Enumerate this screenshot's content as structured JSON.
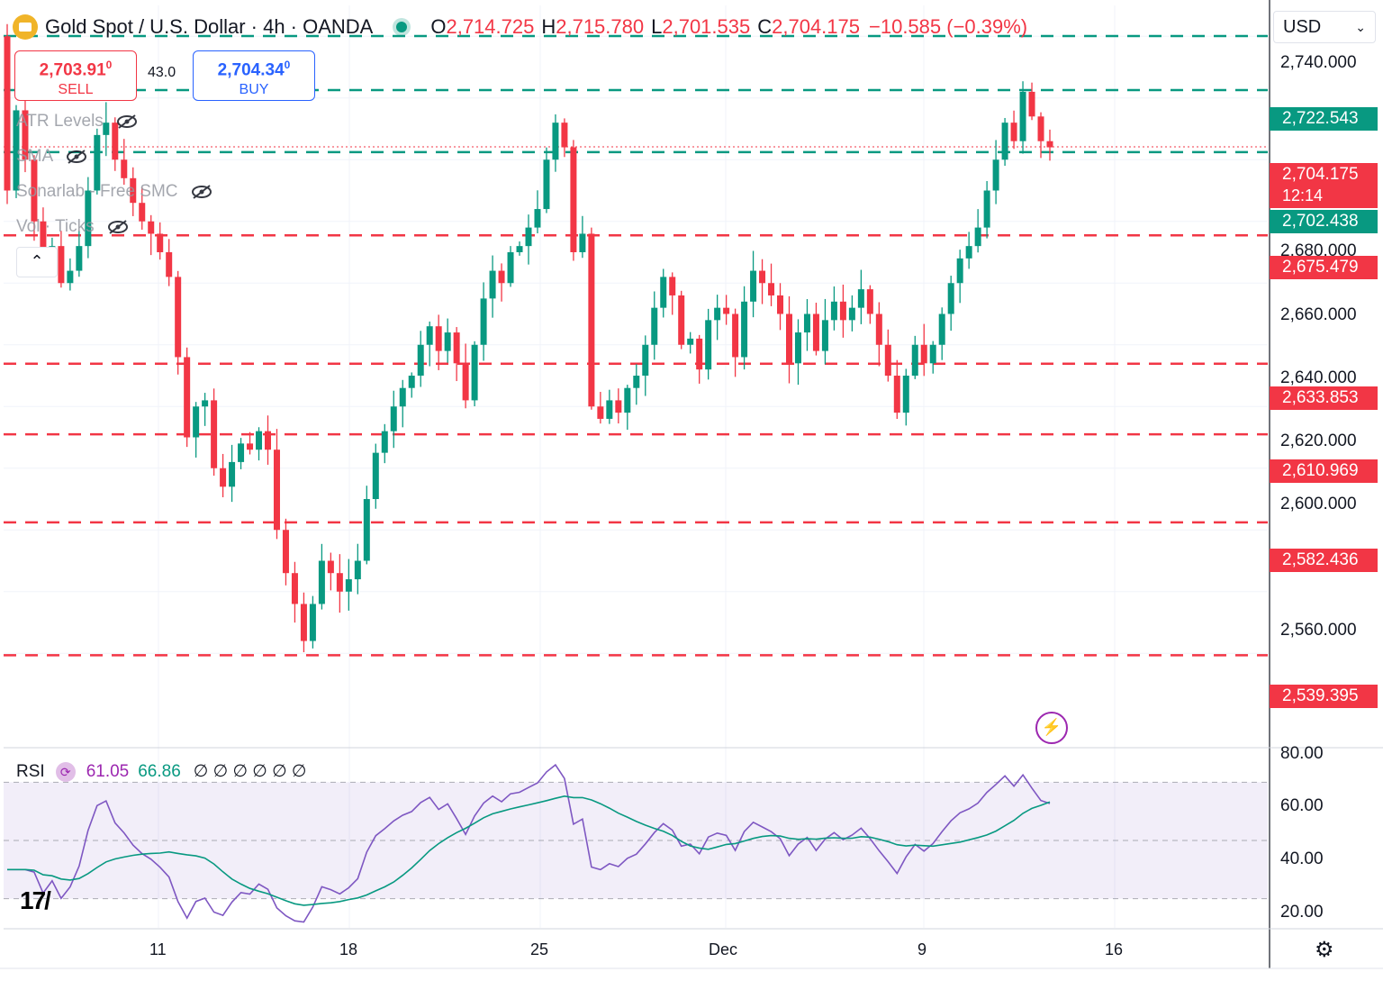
{
  "header": {
    "symbol": "Gold Spot / U.S. Dollar · 4h · OANDA",
    "o_label": "O",
    "o": "2,714.725",
    "h_label": "H",
    "h": "2,715.780",
    "l_label": "L",
    "l": "2,701.535",
    "c_label": "C",
    "c": "2,704.175",
    "change": "−10.585 (−0.39%)"
  },
  "trade": {
    "sell_price": "2,703.91",
    "sell_price_sup": "0",
    "sell_label": "SELL",
    "spread": "43.0",
    "buy_price": "2,704.34",
    "buy_price_sup": "0",
    "buy_label": "BUY"
  },
  "indicators": [
    "ATR Levels",
    "SMA",
    "Sonarlab - Free SMC",
    "Vol · Ticks"
  ],
  "currency": "USD",
  "price_axis": [
    "2,740.000",
    "2,680.000",
    "2,660.000",
    "2,640.000",
    "2,620.000",
    "2,600.000",
    "2,560.000"
  ],
  "price_tags": [
    {
      "value": "2,722.543",
      "color": "#089981"
    },
    {
      "value": "2,704.175",
      "sub": "12:14",
      "color": "#f23645"
    },
    {
      "value": "2,702.438",
      "color": "#089981"
    },
    {
      "value": "2,675.479",
      "color": "#f23645"
    },
    {
      "value": "2,633.853",
      "color": "#f23645"
    },
    {
      "value": "2,610.969",
      "color": "#f23645"
    },
    {
      "value": "2,582.436",
      "color": "#f23645"
    },
    {
      "value": "2,539.395",
      "color": "#f23645"
    }
  ],
  "time_axis": [
    "11",
    "18",
    "25",
    "Dec",
    "9",
    "16"
  ],
  "rsi": {
    "label": "RSI",
    "value": "61.05",
    "sma": "66.86",
    "settings": "∅ ∅ ∅ ∅ ∅ ∅",
    "axis": [
      "80.00",
      "60.00",
      "40.00",
      "20.00"
    ]
  },
  "chart_data": {
    "type": "candlestick",
    "symbol": "XAU/USD",
    "timeframe": "4h",
    "x": [
      "11",
      "18",
      "25",
      "Dec",
      "9",
      "16"
    ],
    "ylim": [
      2510,
      2750
    ],
    "closes": [
      2690,
      2716,
      2700,
      2680,
      2668,
      2672,
      2660,
      2664,
      2672,
      2690,
      2708,
      2712,
      2700,
      2694,
      2686,
      2680,
      2676,
      2670,
      2662,
      2636,
      2610,
      2620,
      2622,
      2600,
      2594,
      2602,
      2608,
      2606,
      2612,
      2606,
      2580,
      2566,
      2556,
      2544,
      2556,
      2570,
      2566,
      2560,
      2564,
      2570,
      2590,
      2605,
      2612,
      2620,
      2626,
      2630,
      2640,
      2646,
      2638,
      2644,
      2634,
      2622,
      2640,
      2655,
      2664,
      2660,
      2670,
      2672,
      2678,
      2684,
      2700,
      2712,
      2704,
      2670,
      2676,
      2620,
      2616,
      2622,
      2618,
      2626,
      2630,
      2640,
      2652,
      2662,
      2656,
      2640,
      2642,
      2632,
      2648,
      2652,
      2650,
      2636,
      2654,
      2664,
      2660,
      2656,
      2650,
      2634,
      2644,
      2650,
      2638,
      2648,
      2654,
      2648,
      2652,
      2658,
      2650,
      2640,
      2630,
      2618,
      2630,
      2640,
      2634,
      2640,
      2650,
      2660,
      2668,
      2672,
      2678,
      2690,
      2700,
      2712,
      2706,
      2722,
      2714,
      2706,
      2704
    ],
    "atr_levels": [
      2722.543,
      2702.438,
      2675.479,
      2633.853,
      2610.969,
      2582.436,
      2539.395
    ],
    "rsi_ylim": [
      20,
      80
    ],
    "rsi_bands": [
      30,
      50,
      70
    ]
  }
}
